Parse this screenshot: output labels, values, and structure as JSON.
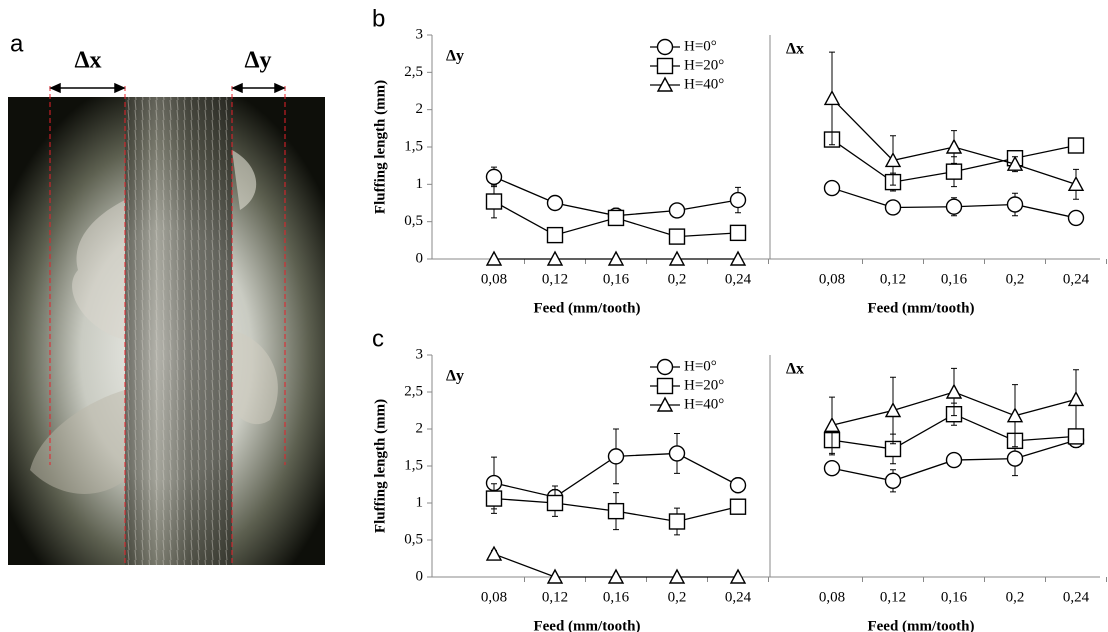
{
  "panel_a": {
    "label": "a",
    "dx_label": "Δx",
    "dy_label": "Δy"
  },
  "chart_data": [
    {
      "type": "line",
      "panel": "b",
      "title": "Δy",
      "y_label": "Fluffing length (mm)",
      "x_label": "Feed (mm/tooth)",
      "categories": [
        "0,08",
        "0,12",
        "0,16",
        "0,2",
        "0,24"
      ],
      "ylim": [
        0,
        3
      ],
      "yticks": [
        0,
        {
          "value": 0.5,
          "label": "0,5"
        },
        1,
        {
          "value": 1.5,
          "label": "1,5"
        },
        2,
        {
          "value": 2.5,
          "label": "2,5"
        },
        3
      ],
      "series": [
        {
          "name": "H=0°",
          "marker": "circle",
          "color": "#000000",
          "values": [
            1.1,
            0.75,
            0.58,
            0.65,
            0.79
          ],
          "errors": [
            0.13,
            0.05,
            0.1,
            0.05,
            0.17
          ]
        },
        {
          "name": "H=20°",
          "marker": "square",
          "color": "#000000",
          "values": [
            0.77,
            0.32,
            0.55,
            0.3,
            0.35
          ],
          "errors": [
            0.22,
            0.05,
            0.1,
            0.05,
            0.05
          ]
        },
        {
          "name": "H=40°",
          "marker": "triangle",
          "color": "#000000",
          "values": [
            0,
            0,
            0,
            0,
            0
          ],
          "errors": [
            0,
            0,
            0,
            0,
            0
          ]
        }
      ]
    },
    {
      "type": "line",
      "title": "Δx",
      "x_label": "Feed (mm/tooth)",
      "categories": [
        "0,08",
        "0,12",
        "0,16",
        "0,2",
        "0,24"
      ],
      "ylim": [
        0,
        3
      ],
      "series": [
        {
          "marker": "circle",
          "color": "#000000",
          "values": [
            0.95,
            0.69,
            0.7,
            0.73,
            0.55
          ],
          "errors": [
            0.05,
            0.05,
            0.12,
            0.15,
            0.05
          ]
        },
        {
          "marker": "square",
          "color": "#000000",
          "values": [
            1.6,
            1.03,
            1.17,
            1.35,
            1.52
          ],
          "errors": [
            0.1,
            0.12,
            0.2,
            0.1,
            0.08
          ]
        },
        {
          "marker": "triangle",
          "color": "#000000",
          "values": [
            2.15,
            1.32,
            1.5,
            1.27,
            1.0
          ],
          "errors": [
            0.62,
            0.33,
            0.22,
            0.1,
            0.2
          ]
        }
      ]
    },
    {
      "type": "line",
      "panel": "c",
      "title": "Δy",
      "y_label": "Fluffing length (mm)",
      "x_label": "Feed (mm/tooth)",
      "categories": [
        "0,08",
        "0,12",
        "0,16",
        "0,2",
        "0,24"
      ],
      "ylim": [
        0,
        3
      ],
      "yticks": [
        0,
        {
          "value": 0.5,
          "label": "0,5"
        },
        1,
        {
          "value": 1.5,
          "label": "1,5"
        },
        2,
        {
          "value": 2.5,
          "label": "2,5"
        },
        3
      ],
      "series": [
        {
          "name": "H=0°",
          "marker": "circle",
          "color": "#000000",
          "values": [
            1.27,
            1.08,
            1.63,
            1.67,
            1.24
          ],
          "errors": [
            0.35,
            0.15,
            0.37,
            0.27,
            0.1
          ]
        },
        {
          "name": "H=20°",
          "marker": "square",
          "color": "#000000",
          "values": [
            1.06,
            1.0,
            0.89,
            0.75,
            0.95
          ],
          "errors": [
            0.2,
            0.18,
            0.25,
            0.18,
            0.05
          ]
        },
        {
          "name": "H=40°",
          "marker": "triangle",
          "color": "#000000",
          "values": [
            0.31,
            0,
            0,
            0,
            0
          ],
          "errors": [
            0.05,
            0,
            0,
            0,
            0
          ]
        }
      ]
    },
    {
      "type": "line",
      "title": "Δx",
      "x_label": "Feed (mm/tooth)",
      "categories": [
        "0,08",
        "0,12",
        "0,16",
        "0,2",
        "0,24"
      ],
      "ylim": [
        0,
        3
      ],
      "series": [
        {
          "marker": "circle",
          "color": "#000000",
          "values": [
            1.47,
            1.3,
            1.58,
            1.6,
            1.85
          ],
          "errors": [
            0.05,
            0.15,
            0.05,
            0.23,
            0.1
          ]
        },
        {
          "marker": "square",
          "color": "#000000",
          "values": [
            1.85,
            1.73,
            2.2,
            1.84,
            1.9
          ],
          "errors": [
            0.2,
            0.2,
            0.15,
            0.1,
            0.1
          ]
        },
        {
          "marker": "triangle",
          "color": "#000000",
          "values": [
            2.05,
            2.25,
            2.5,
            2.18,
            2.4
          ],
          "errors": [
            0.38,
            0.45,
            0.32,
            0.42,
            0.4
          ]
        }
      ]
    }
  ]
}
